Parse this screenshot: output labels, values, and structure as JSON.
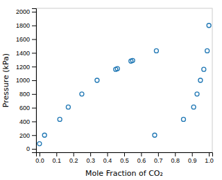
{
  "chart_data": {
    "type": "scatter",
    "x": [
      0.0,
      0.03,
      0.12,
      0.17,
      0.25,
      0.34,
      0.45,
      0.46,
      0.54,
      0.55,
      0.68,
      0.69,
      0.85,
      0.91,
      0.93,
      0.95,
      0.97,
      0.99,
      1.0
    ],
    "y": [
      75,
      200,
      430,
      610,
      800,
      1000,
      1160,
      1170,
      1280,
      1290,
      200,
      1430,
      430,
      610,
      800,
      1000,
      1160,
      1430,
      1800
    ],
    "xlabel": "Mole Fraction of CO₂",
    "ylabel": "Pressure (kPa)",
    "xlim": [
      -0.02,
      1.02
    ],
    "ylim": [
      -50,
      2050
    ],
    "xticks": [
      {
        "value": 0.0,
        "label": "0.0"
      },
      0.1,
      0.2,
      0.3,
      0.4,
      0.5,
      0.6,
      0.7,
      0.8,
      0.9,
      {
        "value": 1.0,
        "label": "1.0"
      }
    ],
    "yticks": [
      0,
      200,
      400,
      600,
      800,
      1000,
      1200,
      1400,
      1600,
      1800,
      2000
    ],
    "grid": false
  }
}
